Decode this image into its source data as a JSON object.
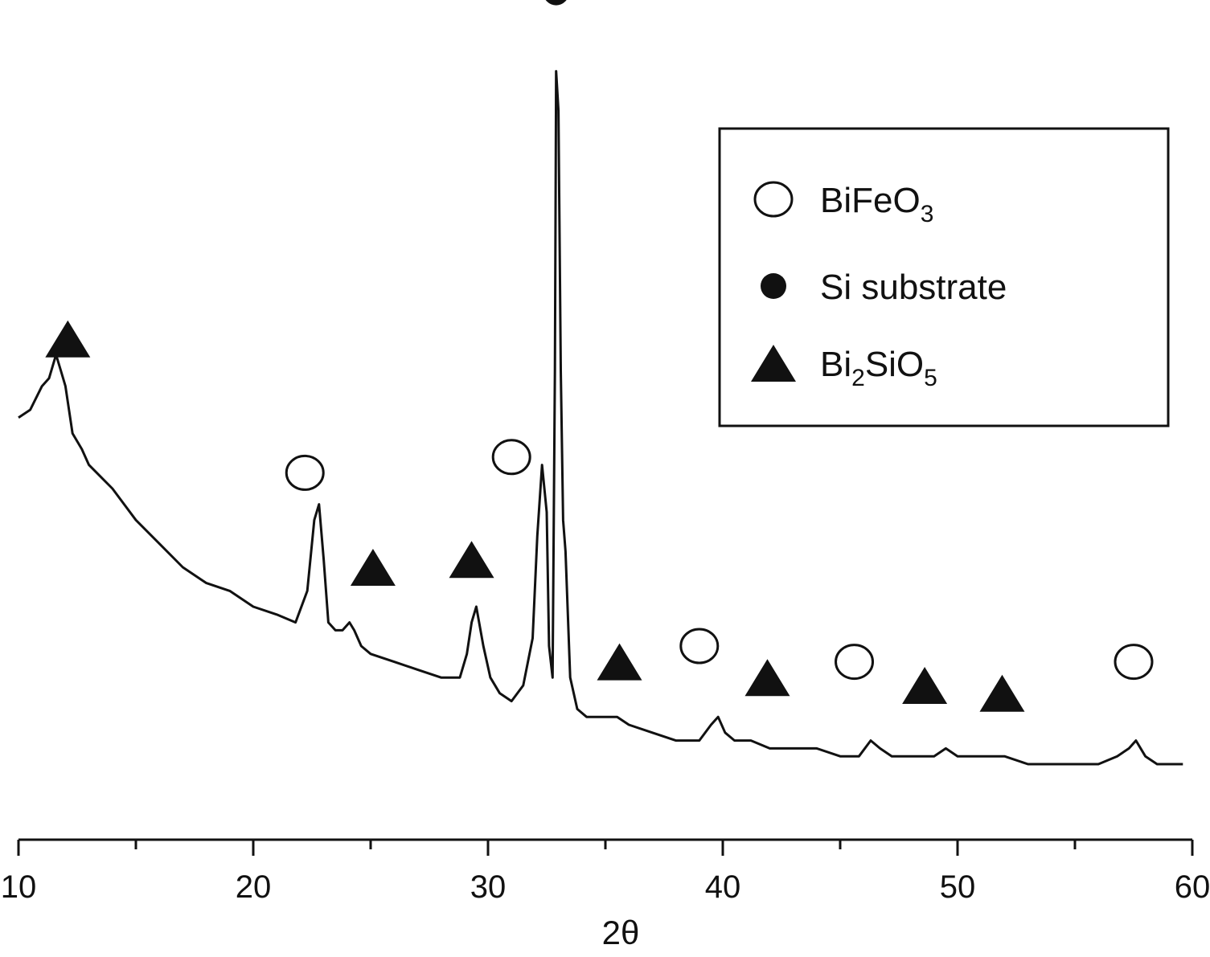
{
  "chart_data": {
    "type": "line",
    "title": "",
    "xlabel": "2θ",
    "ylabel": "",
    "xlim": [
      10,
      60
    ],
    "x_ticks": [
      10,
      20,
      30,
      40,
      50,
      60
    ],
    "y_axis_shown": false,
    "grid": false,
    "legend_position": "top-right",
    "colors": {
      "line": "#111111",
      "marker": "#111111"
    },
    "series": [
      {
        "x": [
          10.0,
          10.5,
          11.0,
          11.3,
          11.6,
          11.8,
          12.0,
          12.3,
          12.7,
          13.0,
          14.0,
          15.0,
          16.0,
          17.0,
          18.0,
          19.0,
          20.0,
          21.0,
          21.8,
          22.3,
          22.6,
          22.8,
          23.0,
          23.2,
          23.5,
          23.8,
          24.1,
          24.3,
          24.6,
          25.0,
          26.0,
          27.0,
          28.0,
          28.8,
          29.1,
          29.3,
          29.5,
          29.8,
          30.1,
          30.5,
          31.0,
          31.5,
          31.9,
          32.1,
          32.3,
          32.5,
          32.6,
          32.75,
          32.85,
          32.9,
          33.0,
          33.1,
          33.2,
          33.3,
          33.5,
          33.8,
          34.2,
          35.0,
          35.5,
          36.0,
          37.0,
          38.0,
          39.0,
          39.5,
          39.8,
          40.1,
          40.5,
          41.2,
          42.0,
          43.0,
          44.0,
          45.0,
          45.8,
          46.3,
          46.7,
          47.2,
          48.0,
          49.0,
          49.5,
          50.0,
          51.0,
          52.0,
          53.0,
          54.0,
          55.0,
          56.0,
          56.8,
          57.3,
          57.6,
          58.0,
          58.5,
          59.0,
          59.6
        ],
        "y": [
          0.51,
          0.5,
          0.47,
          0.46,
          0.43,
          0.45,
          0.47,
          0.53,
          0.55,
          0.57,
          0.6,
          0.64,
          0.67,
          0.7,
          0.72,
          0.73,
          0.75,
          0.76,
          0.77,
          0.73,
          0.64,
          0.62,
          0.69,
          0.77,
          0.78,
          0.78,
          0.77,
          0.78,
          0.8,
          0.81,
          0.82,
          0.83,
          0.84,
          0.84,
          0.81,
          0.77,
          0.75,
          0.8,
          0.84,
          0.86,
          0.87,
          0.85,
          0.79,
          0.66,
          0.57,
          0.63,
          0.8,
          0.84,
          0.45,
          0.07,
          0.12,
          0.45,
          0.64,
          0.68,
          0.84,
          0.88,
          0.89,
          0.89,
          0.89,
          0.9,
          0.91,
          0.92,
          0.92,
          0.9,
          0.89,
          0.91,
          0.92,
          0.92,
          0.93,
          0.93,
          0.93,
          0.94,
          0.94,
          0.92,
          0.93,
          0.94,
          0.94,
          0.94,
          0.93,
          0.94,
          0.94,
          0.94,
          0.95,
          0.95,
          0.95,
          0.95,
          0.94,
          0.93,
          0.92,
          0.94,
          0.95,
          0.95,
          0.95
        ]
      }
    ],
    "annotations": [
      {
        "marker": "triangle",
        "x": 12.1,
        "y": 0.41
      },
      {
        "marker": "open-circle",
        "x": 22.2,
        "y": 0.58
      },
      {
        "marker": "triangle",
        "x": 25.1,
        "y": 0.7
      },
      {
        "marker": "triangle",
        "x": 29.3,
        "y": 0.69
      },
      {
        "marker": "open-circle",
        "x": 31.0,
        "y": 0.56
      },
      {
        "marker": "filled-circle",
        "x": 32.9,
        "y": -0.03
      },
      {
        "marker": "triangle",
        "x": 35.6,
        "y": 0.82
      },
      {
        "marker": "open-circle",
        "x": 39.0,
        "y": 0.8
      },
      {
        "marker": "triangle",
        "x": 41.9,
        "y": 0.84
      },
      {
        "marker": "open-circle",
        "x": 45.6,
        "y": 0.82
      },
      {
        "marker": "triangle",
        "x": 48.6,
        "y": 0.85
      },
      {
        "marker": "triangle",
        "x": 51.9,
        "y": 0.86
      },
      {
        "marker": "open-circle",
        "x": 57.5,
        "y": 0.82
      }
    ],
    "legend": [
      {
        "marker": "open-circle",
        "label": "BiFeO",
        "sub": "3",
        "tail": ""
      },
      {
        "marker": "filled-circle",
        "label": "Si substrate",
        "sub": "",
        "tail": ""
      },
      {
        "marker": "triangle",
        "label": "Bi",
        "sub": "2",
        "tail": "SiO",
        "sub2": "5"
      }
    ]
  }
}
